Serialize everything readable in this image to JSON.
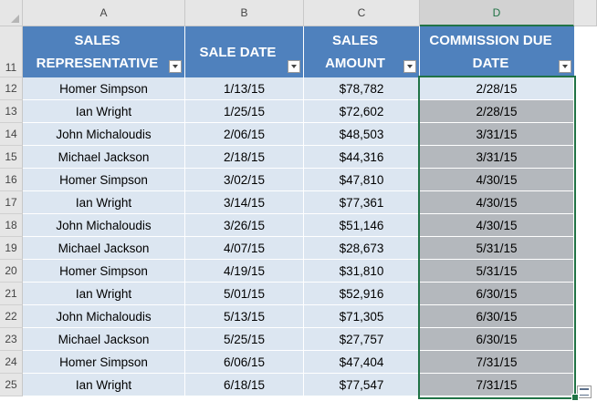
{
  "columns": [
    {
      "letter": "A",
      "header": "SALES REPRESENTATIVE"
    },
    {
      "letter": "B",
      "header": "SALE DATE"
    },
    {
      "letter": "C",
      "header": "SALES AMOUNT"
    },
    {
      "letter": "D",
      "header": "COMMISSION DUE DATE"
    }
  ],
  "header_row_number": "11",
  "header_line1": [
    "SALES",
    "SALE DATE",
    "SALES",
    "COMMISSION DUE"
  ],
  "header_line2": [
    "REPRESENTATIVE",
    "",
    "AMOUNT",
    "DATE"
  ],
  "rows": [
    {
      "num": "12",
      "rep": "Homer Simpson",
      "date": "1/13/15",
      "amount": "$78,782",
      "due": "2/28/15"
    },
    {
      "num": "13",
      "rep": "Ian Wright",
      "date": "1/25/15",
      "amount": "$72,602",
      "due": "2/28/15"
    },
    {
      "num": "14",
      "rep": "John Michaloudis",
      "date": "2/06/15",
      "amount": "$48,503",
      "due": "3/31/15"
    },
    {
      "num": "15",
      "rep": "Michael Jackson",
      "date": "2/18/15",
      "amount": "$44,316",
      "due": "3/31/15"
    },
    {
      "num": "16",
      "rep": "Homer Simpson",
      "date": "3/02/15",
      "amount": "$47,810",
      "due": "4/30/15"
    },
    {
      "num": "17",
      "rep": "Ian Wright",
      "date": "3/14/15",
      "amount": "$77,361",
      "due": "4/30/15"
    },
    {
      "num": "18",
      "rep": "John Michaloudis",
      "date": "3/26/15",
      "amount": "$51,146",
      "due": "4/30/15"
    },
    {
      "num": "19",
      "rep": "Michael Jackson",
      "date": "4/07/15",
      "amount": "$28,673",
      "due": "5/31/15"
    },
    {
      "num": "20",
      "rep": "Homer Simpson",
      "date": "4/19/15",
      "amount": "$31,810",
      "due": "5/31/15"
    },
    {
      "num": "21",
      "rep": "Ian Wright",
      "date": "5/01/15",
      "amount": "$52,916",
      "due": "6/30/15"
    },
    {
      "num": "22",
      "rep": "John Michaloudis",
      "date": "5/13/15",
      "amount": "$71,305",
      "due": "6/30/15"
    },
    {
      "num": "23",
      "rep": "Michael Jackson",
      "date": "5/25/15",
      "amount": "$27,757",
      "due": "6/30/15"
    },
    {
      "num": "24",
      "rep": "Homer Simpson",
      "date": "6/06/15",
      "amount": "$47,404",
      "due": "7/31/15"
    },
    {
      "num": "25",
      "rep": "Ian Wright",
      "date": "6/18/15",
      "amount": "$77,547",
      "due": "7/31/15"
    }
  ],
  "colors": {
    "header_bg": "#4f81bd",
    "band": "#dce6f1",
    "selection": "#b4b8bd",
    "accent": "#217346"
  },
  "icons": {
    "filter": "dropdown-arrow-icon",
    "quick_analysis": "quick-analysis-icon"
  }
}
